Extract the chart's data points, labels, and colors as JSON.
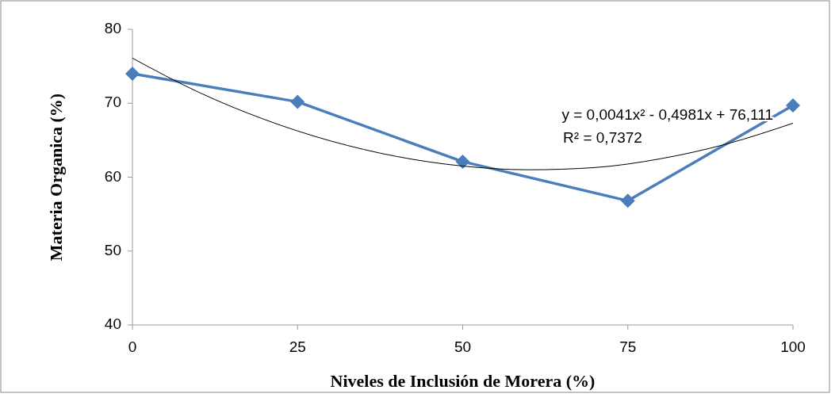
{
  "chart_data": {
    "type": "line",
    "xlabel": "Niveles de Inclusión de Morera (%)",
    "ylabel": "Materia Organica (%)",
    "xlim": [
      0,
      100
    ],
    "xticks": [
      0,
      25,
      50,
      75,
      100
    ],
    "ylim": [
      40,
      80
    ],
    "yticks": [
      40,
      50,
      60,
      70,
      80
    ],
    "grid": false,
    "series": [
      {
        "color": "#4a7ebb",
        "marker": "diamond",
        "x": [
          0,
          25,
          50,
          75,
          100
        ],
        "values": [
          74,
          70.2,
          62.1,
          56.8,
          69.7
        ]
      },
      {
        "type": "line",
        "color": "#000000",
        "marker": "none",
        "x": [
          0,
          10,
          20,
          30,
          40,
          50,
          60,
          70,
          80,
          90,
          100
        ],
        "values": [
          76.1,
          71.5,
          67.8,
          64.9,
          62.8,
          61.5,
          61,
          61.3,
          62.5,
          64.5,
          67.3
        ]
      }
    ],
    "annotations": [
      "y = 0,0041x² - 0,4981x + 76,111",
      "R² = 0,7372"
    ]
  }
}
